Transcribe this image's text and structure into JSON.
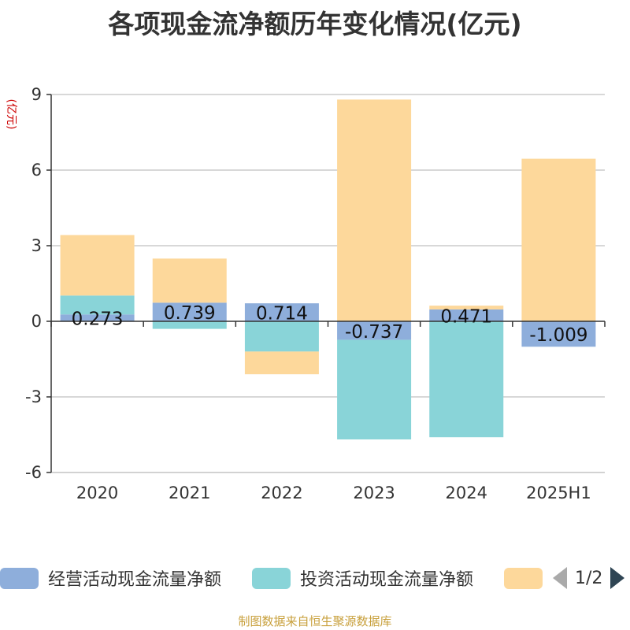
{
  "title": "各项现金流净额历年变化情况(亿元)",
  "source": "制图数据来自恒生聚源数据库",
  "pager": {
    "text": "1/2"
  },
  "chart_data": {
    "type": "bar",
    "stacked": true,
    "ylabel": "(亿元)",
    "ylim": [
      -6,
      9
    ],
    "yticks": [
      -6,
      -3,
      0,
      3,
      6,
      9
    ],
    "grid": true,
    "legend_position": "bottom",
    "categories": [
      "2020",
      "2021",
      "2022",
      "2023",
      "2024",
      "2025H1"
    ],
    "series": [
      {
        "name": "经营活动现金流量净额",
        "color": "#8eaedb",
        "values": [
          0.273,
          0.739,
          0.714,
          -0.737,
          0.471,
          -1.009
        ],
        "labels": [
          "0.273",
          "0.739",
          "0.714",
          "-0.737",
          "0.471",
          "-1.009"
        ]
      },
      {
        "name": "投资活动现金流量净额",
        "color": "#89d4d8",
        "values": [
          0.75,
          -0.3,
          -1.2,
          -3.95,
          -4.6,
          0
        ]
      },
      {
        "name": "",
        "color": "#fdd89b",
        "values": [
          2.4,
          1.75,
          -0.9,
          8.8,
          0.15,
          6.45
        ]
      }
    ]
  }
}
